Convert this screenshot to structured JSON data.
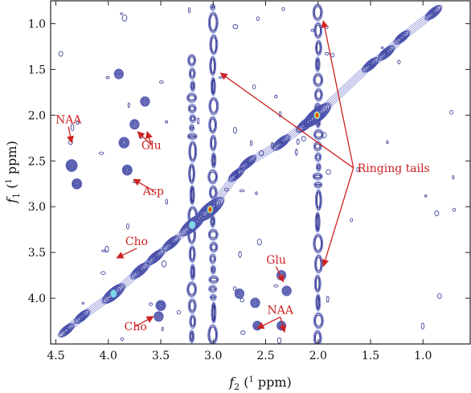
{
  "chart_data": {
    "type": "contour",
    "xlabel": {
      "italic": "f",
      "sub": "2",
      "pre": " (",
      "sup": "1",
      "post": " ppm)"
    },
    "ylabel": {
      "italic": "f",
      "sub": "1",
      "pre": " (",
      "sup": "1",
      "post": " ppm)"
    },
    "xlabel_text": "f2 (1H ppm)",
    "ylabel_text": "f1 (1H ppm)",
    "xlim": [
      4.55,
      0.55
    ],
    "ylim": [
      0.75,
      4.5
    ],
    "x_ticks": [
      4.5,
      4.0,
      3.5,
      3.0,
      2.5,
      2.0,
      1.5,
      1.0
    ],
    "x_tick_labels": [
      "4.5",
      "4.0",
      "3.5",
      "3.0",
      "2.5",
      "2.0",
      "1.5",
      "1.0"
    ],
    "y_ticks": [
      1.0,
      1.5,
      2.0,
      2.5,
      3.0,
      3.5,
      4.0
    ],
    "y_tick_labels": [
      "1.0",
      "1.5",
      "2.0",
      "2.5",
      "3.0",
      "3.5",
      "4.0"
    ],
    "colors": {
      "contour": "#2a2f8c",
      "contour_light": "#6a72c8",
      "annotation": "#cc2222",
      "peak_hot": "#e03010",
      "peak_warm": "#f0c020",
      "peak_cool": "#7fd3e8"
    },
    "diagonal_peaks": [
      {
        "x": 4.4,
        "y": 4.35,
        "intensity": 0.4
      },
      {
        "x": 4.25,
        "y": 4.2,
        "intensity": 0.4
      },
      {
        "x": 3.95,
        "y": 3.95,
        "intensity": 0.75
      },
      {
        "x": 3.7,
        "y": 3.7,
        "intensity": 0.55
      },
      {
        "x": 3.55,
        "y": 3.55,
        "intensity": 0.5
      },
      {
        "x": 3.4,
        "y": 3.4,
        "intensity": 0.5
      },
      {
        "x": 3.2,
        "y": 3.2,
        "intensity": 0.85
      },
      {
        "x": 3.03,
        "y": 3.03,
        "intensity": 1.0
      },
      {
        "x": 2.78,
        "y": 2.65,
        "intensity": 0.4
      },
      {
        "x": 2.67,
        "y": 2.52,
        "intensity": 0.45
      },
      {
        "x": 2.35,
        "y": 2.3,
        "intensity": 0.5
      },
      {
        "x": 2.12,
        "y": 2.1,
        "intensity": 0.55
      },
      {
        "x": 2.01,
        "y": 2.0,
        "intensity": 1.0
      },
      {
        "x": 1.5,
        "y": 1.45,
        "intensity": 0.45
      },
      {
        "x": 1.35,
        "y": 1.32,
        "intensity": 0.45
      },
      {
        "x": 1.2,
        "y": 1.15,
        "intensity": 0.4
      },
      {
        "x": 0.9,
        "y": 0.88,
        "intensity": 0.45
      }
    ],
    "cross_peaks": [
      {
        "x": 4.35,
        "y": 2.55,
        "intensity": 0.5
      },
      {
        "x": 4.3,
        "y": 2.75,
        "intensity": 0.35
      },
      {
        "x": 3.85,
        "y": 2.3,
        "intensity": 0.4
      },
      {
        "x": 3.82,
        "y": 2.6,
        "intensity": 0.35
      },
      {
        "x": 3.75,
        "y": 2.1,
        "intensity": 0.3
      },
      {
        "x": 3.9,
        "y": 1.55,
        "intensity": 0.3
      },
      {
        "x": 3.5,
        "y": 4.08,
        "intensity": 0.35
      },
      {
        "x": 3.52,
        "y": 4.2,
        "intensity": 0.3
      },
      {
        "x": 2.35,
        "y": 3.75,
        "intensity": 0.3
      },
      {
        "x": 2.3,
        "y": 3.92,
        "intensity": 0.3
      },
      {
        "x": 2.35,
        "y": 4.3,
        "intensity": 0.25
      },
      {
        "x": 2.58,
        "y": 4.3,
        "intensity": 0.25
      },
      {
        "x": 2.6,
        "y": 4.05,
        "intensity": 0.3
      },
      {
        "x": 2.75,
        "y": 3.95,
        "intensity": 0.3
      },
      {
        "x": 3.65,
        "y": 1.85,
        "intensity": 0.3
      }
    ],
    "ringing_tails": [
      {
        "x": 3.0,
        "y_from": 0.75,
        "y_to": 4.5
      },
      {
        "x": 2.0,
        "y_from": 0.75,
        "y_to": 4.5
      },
      {
        "x": 3.2,
        "y_from": 1.3,
        "y_to": 4.5
      }
    ],
    "annotations": [
      {
        "label": "NAA",
        "text_x": 4.38,
        "text_y": 2.09,
        "arrows": [
          {
            "to_x": 4.35,
            "to_y": 2.3
          }
        ]
      },
      {
        "label": "Glu",
        "text_x": 3.59,
        "text_y": 2.37,
        "arrows": [
          {
            "to_x": 3.72,
            "to_y": 2.18
          },
          {
            "to_x": 3.63,
            "to_y": 2.18
          }
        ]
      },
      {
        "label": "Asp",
        "text_x": 3.57,
        "text_y": 2.87,
        "arrows": [
          {
            "to_x": 3.76,
            "to_y": 2.7
          }
        ]
      },
      {
        "label": "Cho",
        "text_x": 3.73,
        "text_y": 3.42,
        "arrows": [
          {
            "to_x": 3.92,
            "to_y": 3.56
          }
        ]
      },
      {
        "label": "Cho",
        "text_x": 3.74,
        "text_y": 4.35,
        "arrows": [
          {
            "to_x": 3.57,
            "to_y": 4.2
          }
        ]
      },
      {
        "label": "Glu",
        "text_x": 2.4,
        "text_y": 3.62,
        "arrows": [
          {
            "to_x": 2.33,
            "to_y": 3.82
          }
        ]
      },
      {
        "label": "NAA",
        "text_x": 2.36,
        "text_y": 4.17,
        "arrows": [
          {
            "to_x": 2.58,
            "to_y": 4.33
          },
          {
            "to_x": 2.32,
            "to_y": 4.37
          }
        ]
      },
      {
        "label": "Ringing tails",
        "text_x": 1.28,
        "text_y": 2.62,
        "arrows": [
          {
            "to_x": 2.93,
            "to_y": 1.54
          },
          {
            "to_x": 1.95,
            "to_y": 0.97
          },
          {
            "to_x": 1.95,
            "to_y": 3.65
          }
        ]
      }
    ]
  }
}
